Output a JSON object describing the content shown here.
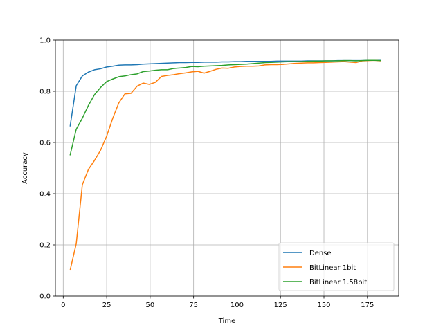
{
  "chart_data": {
    "type": "line",
    "title": "",
    "xlabel": "Time",
    "ylabel": "Accuracy",
    "xlim": [
      -4.5,
      193
    ],
    "ylim": [
      0.0,
      1.0
    ],
    "xticks": [
      0,
      25,
      50,
      75,
      100,
      125,
      150,
      175
    ],
    "yticks": [
      0.0,
      0.2,
      0.4,
      0.6,
      0.8,
      1.0
    ],
    "xtick_labels": [
      "0",
      "25",
      "50",
      "75",
      "100",
      "125",
      "150",
      "175"
    ],
    "ytick_labels": [
      "0.0",
      "0.2",
      "0.4",
      "0.6",
      "0.8",
      "1.0"
    ],
    "grid": true,
    "legend_position": "lower right",
    "x": [
      4,
      7.5,
      11,
      14.5,
      18,
      21.5,
      25,
      28.5,
      32,
      35.5,
      39,
      42.5,
      46,
      49.5,
      53,
      56.5,
      60,
      63.5,
      67,
      70.5,
      74,
      77.5,
      81,
      84.5,
      88,
      91.5,
      95,
      98.5,
      102,
      105.5,
      109,
      112.5,
      116,
      119.5,
      123,
      126.5,
      130,
      133.5,
      137,
      140.5,
      144,
      147.5,
      151,
      154.5,
      158,
      161.5,
      165,
      168.5,
      172,
      175.5,
      179,
      182.5
    ],
    "series": [
      {
        "name": "Dense",
        "color": "#1f77b4",
        "values": [
          0.665,
          0.822,
          0.86,
          0.875,
          0.884,
          0.888,
          0.895,
          0.898,
          0.902,
          0.903,
          0.903,
          0.904,
          0.906,
          0.907,
          0.908,
          0.909,
          0.91,
          0.911,
          0.912,
          0.912,
          0.913,
          0.913,
          0.914,
          0.914,
          0.914,
          0.915,
          0.915,
          0.916,
          0.916,
          0.917,
          0.917,
          0.917,
          0.917,
          0.917,
          0.918,
          0.918,
          0.918,
          0.918,
          0.918,
          0.919,
          0.919,
          0.919,
          0.919,
          0.919,
          0.92,
          0.92,
          0.92,
          0.92,
          0.92,
          0.921,
          0.921,
          0.921
        ]
      },
      {
        "name": "BitLinear 1bit",
        "color": "#ff7f0e",
        "values": [
          0.102,
          0.205,
          0.435,
          0.495,
          0.53,
          0.57,
          0.625,
          0.695,
          0.755,
          0.79,
          0.792,
          0.82,
          0.832,
          0.827,
          0.835,
          0.858,
          0.862,
          0.865,
          0.869,
          0.872,
          0.876,
          0.878,
          0.871,
          0.878,
          0.886,
          0.891,
          0.89,
          0.895,
          0.897,
          0.898,
          0.898,
          0.899,
          0.903,
          0.904,
          0.904,
          0.905,
          0.907,
          0.909,
          0.91,
          0.911,
          0.911,
          0.912,
          0.913,
          0.914,
          0.915,
          0.916,
          0.914,
          0.912,
          0.919,
          0.92,
          0.921,
          0.919
        ]
      },
      {
        "name": "BitLinear 1.58bit",
        "color": "#2ca02c",
        "values": [
          0.552,
          0.652,
          0.695,
          0.745,
          0.787,
          0.815,
          0.838,
          0.848,
          0.857,
          0.86,
          0.865,
          0.868,
          0.877,
          0.879,
          0.882,
          0.884,
          0.884,
          0.889,
          0.891,
          0.893,
          0.897,
          0.896,
          0.898,
          0.899,
          0.9,
          0.901,
          0.903,
          0.904,
          0.905,
          0.906,
          0.908,
          0.91,
          0.912,
          0.913,
          0.914,
          0.915,
          0.916,
          0.916,
          0.916,
          0.917,
          0.918,
          0.918,
          0.919,
          0.919,
          0.919,
          0.92,
          0.92,
          0.919,
          0.92,
          0.921,
          0.921,
          0.92
        ]
      }
    ]
  }
}
